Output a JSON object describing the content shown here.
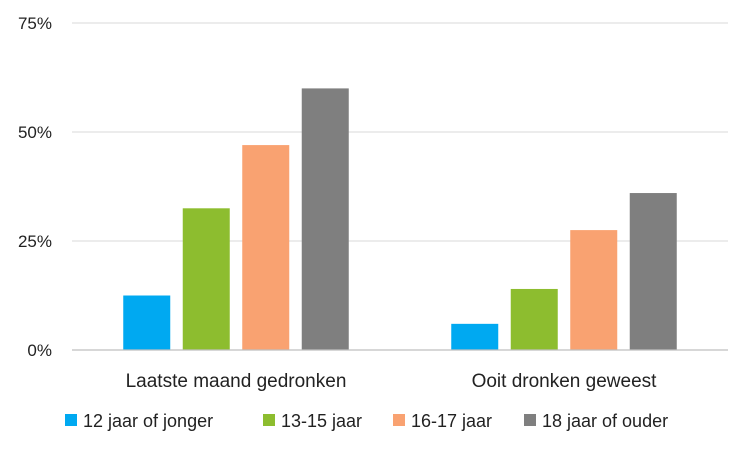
{
  "chart_data": {
    "type": "bar",
    "categories": [
      "Laatste maand gedronken",
      "Ooit dronken geweest"
    ],
    "series": [
      {
        "name": "12 jaar of jonger",
        "values": [
          12.5,
          6
        ],
        "color": "#00a9f1"
      },
      {
        "name": "13-15 jaar",
        "values": [
          32.5,
          14
        ],
        "color": "#8dbd2f"
      },
      {
        "name": "16-17 jaar",
        "values": [
          47,
          27.5
        ],
        "color": "#f9a271"
      },
      {
        "name": "18 jaar of ouder",
        "values": [
          60,
          36
        ],
        "color": "#7f7f7f"
      }
    ],
    "yticks": [
      "0%",
      "25%",
      "50%",
      "75%"
    ],
    "ylim": [
      0,
      75
    ],
    "grid": true,
    "legend_position": "bottom"
  }
}
